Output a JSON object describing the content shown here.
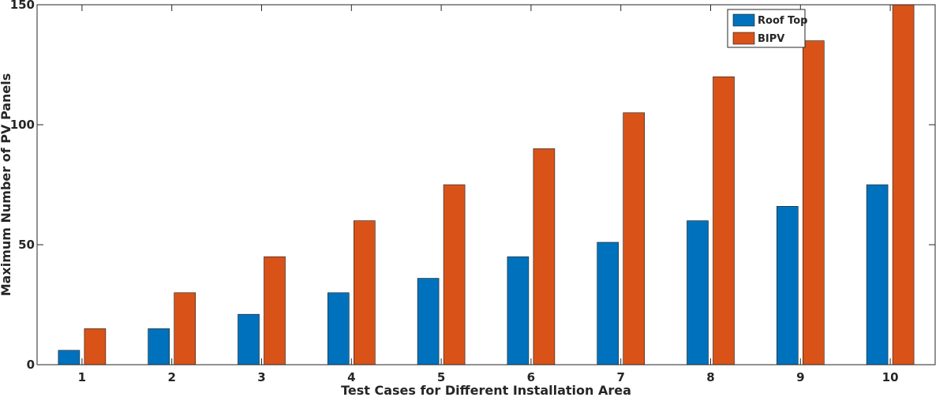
{
  "chart_data": {
    "type": "bar",
    "title": "",
    "xlabel": "Test Cases for Different Installation Area",
    "ylabel": "Maximum Number of PV Panels",
    "categories": [
      "1",
      "2",
      "3",
      "4",
      "5",
      "6",
      "7",
      "8",
      "9",
      "10"
    ],
    "ylim": [
      0,
      150
    ],
    "yticks": [
      0,
      50,
      100,
      150
    ],
    "grid": false,
    "legend_position": "top-right",
    "series": [
      {
        "name": "Roof Top",
        "color": "#0072bd",
        "values": [
          6,
          15,
          21,
          30,
          36,
          45,
          51,
          60,
          66,
          75
        ]
      },
      {
        "name": "BIPV",
        "color": "#d95319",
        "values": [
          15,
          30,
          45,
          60,
          75,
          90,
          105,
          120,
          135,
          150
        ]
      }
    ]
  }
}
